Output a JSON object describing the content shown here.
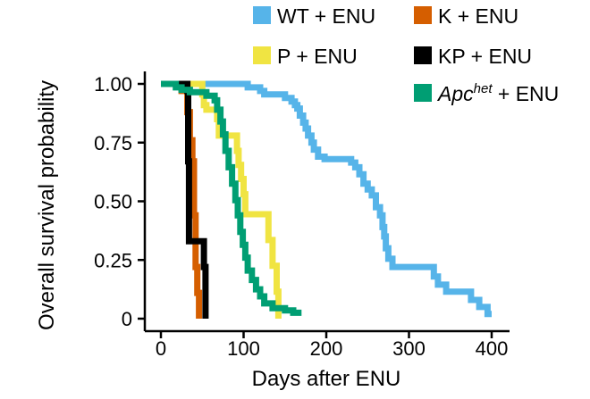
{
  "chart_data": {
    "type": "line",
    "step": true,
    "title": "",
    "xlabel": "Days after ENU",
    "ylabel": "Overall survival probability",
    "xlim": [
      0,
      400
    ],
    "ylim": [
      0,
      1
    ],
    "xticks": [
      0,
      100,
      200,
      300,
      400
    ],
    "yticks": [
      0,
      0.25,
      0.5,
      0.75,
      1.0
    ],
    "xtick_labels": [
      "0",
      "100",
      "200",
      "300",
      "400"
    ],
    "ytick_labels": [
      "0",
      "0.25",
      "0.50",
      "0.75",
      "1.00"
    ],
    "grid": false,
    "legend_position": "top-right",
    "series": [
      {
        "name": "WT + ENU",
        "color": "#56B4E9",
        "points": [
          [
            0,
            1.0
          ],
          [
            105,
            1.0
          ],
          [
            105,
            0.985
          ],
          [
            120,
            0.985
          ],
          [
            120,
            0.97
          ],
          [
            125,
            0.97
          ],
          [
            125,
            0.955
          ],
          [
            150,
            0.955
          ],
          [
            150,
            0.94
          ],
          [
            158,
            0.94
          ],
          [
            158,
            0.925
          ],
          [
            162,
            0.925
          ],
          [
            162,
            0.91
          ],
          [
            165,
            0.91
          ],
          [
            165,
            0.895
          ],
          [
            168,
            0.895
          ],
          [
            168,
            0.865
          ],
          [
            172,
            0.865
          ],
          [
            172,
            0.835
          ],
          [
            175,
            0.835
          ],
          [
            175,
            0.81
          ],
          [
            178,
            0.81
          ],
          [
            178,
            0.78
          ],
          [
            182,
            0.78
          ],
          [
            182,
            0.75
          ],
          [
            185,
            0.75
          ],
          [
            185,
            0.72
          ],
          [
            190,
            0.72
          ],
          [
            190,
            0.69
          ],
          [
            198,
            0.69
          ],
          [
            198,
            0.68
          ],
          [
            230,
            0.68
          ],
          [
            230,
            0.665
          ],
          [
            235,
            0.665
          ],
          [
            235,
            0.645
          ],
          [
            240,
            0.645
          ],
          [
            240,
            0.615
          ],
          [
            245,
            0.615
          ],
          [
            245,
            0.575
          ],
          [
            250,
            0.575
          ],
          [
            250,
            0.55
          ],
          [
            255,
            0.55
          ],
          [
            255,
            0.525
          ],
          [
            260,
            0.525
          ],
          [
            260,
            0.475
          ],
          [
            265,
            0.475
          ],
          [
            265,
            0.44
          ],
          [
            268,
            0.44
          ],
          [
            268,
            0.39
          ],
          [
            270,
            0.39
          ],
          [
            270,
            0.35
          ],
          [
            272,
            0.35
          ],
          [
            272,
            0.3
          ],
          [
            275,
            0.3
          ],
          [
            275,
            0.255
          ],
          [
            280,
            0.255
          ],
          [
            280,
            0.22
          ],
          [
            330,
            0.22
          ],
          [
            330,
            0.18
          ],
          [
            335,
            0.18
          ],
          [
            335,
            0.145
          ],
          [
            345,
            0.145
          ],
          [
            345,
            0.115
          ],
          [
            375,
            0.115
          ],
          [
            375,
            0.08
          ],
          [
            385,
            0.08
          ],
          [
            385,
            0.05
          ],
          [
            395,
            0.05
          ],
          [
            395,
            0.02
          ],
          [
            400,
            0.02
          ]
        ]
      },
      {
        "name": "P + ENU",
        "color": "#F0E442",
        "points": [
          [
            0,
            1.0
          ],
          [
            50,
            1.0
          ],
          [
            50,
            0.955
          ],
          [
            52,
            0.955
          ],
          [
            52,
            0.91
          ],
          [
            55,
            0.91
          ],
          [
            55,
            0.89
          ],
          [
            68,
            0.89
          ],
          [
            68,
            0.85
          ],
          [
            70,
            0.85
          ],
          [
            70,
            0.78
          ],
          [
            92,
            0.78
          ],
          [
            92,
            0.715
          ],
          [
            94,
            0.715
          ],
          [
            94,
            0.655
          ],
          [
            97,
            0.655
          ],
          [
            97,
            0.595
          ],
          [
            100,
            0.595
          ],
          [
            100,
            0.53
          ],
          [
            102,
            0.53
          ],
          [
            102,
            0.445
          ],
          [
            130,
            0.445
          ],
          [
            130,
            0.335
          ],
          [
            135,
            0.335
          ],
          [
            135,
            0.225
          ],
          [
            140,
            0.225
          ],
          [
            140,
            0.115
          ],
          [
            142,
            0.115
          ],
          [
            142,
            0.0
          ]
        ]
      },
      {
        "name": "K + ENU",
        "color": "#D55E00",
        "points": [
          [
            0,
            1.0
          ],
          [
            25,
            1.0
          ],
          [
            25,
            0.97
          ],
          [
            32,
            0.97
          ],
          [
            32,
            0.88
          ],
          [
            35,
            0.88
          ],
          [
            35,
            0.76
          ],
          [
            38,
            0.76
          ],
          [
            38,
            0.67
          ],
          [
            40,
            0.67
          ],
          [
            40,
            0.44
          ],
          [
            42,
            0.44
          ],
          [
            42,
            0.22
          ],
          [
            44,
            0.22
          ],
          [
            44,
            0.11
          ],
          [
            46,
            0.11
          ],
          [
            46,
            0.0
          ]
        ]
      },
      {
        "name": "KP + ENU",
        "color": "#000000",
        "points": [
          [
            0,
            1.0
          ],
          [
            32,
            1.0
          ],
          [
            32,
            0.97
          ],
          [
            33,
            0.97
          ],
          [
            33,
            0.67
          ],
          [
            34,
            0.67
          ],
          [
            34,
            0.33
          ],
          [
            52,
            0.33
          ],
          [
            52,
            0.22
          ],
          [
            54,
            0.22
          ],
          [
            54,
            0.0
          ]
        ]
      },
      {
        "name_html": {
          "pre": "Apc",
          "sup": "het",
          "post": " + ENU"
        },
        "color": "#009E73",
        "points": [
          [
            0,
            1.0
          ],
          [
            18,
            1.0
          ],
          [
            18,
            0.985
          ],
          [
            25,
            0.985
          ],
          [
            25,
            0.975
          ],
          [
            35,
            0.975
          ],
          [
            35,
            0.965
          ],
          [
            55,
            0.965
          ],
          [
            55,
            0.95
          ],
          [
            65,
            0.95
          ],
          [
            65,
            0.93
          ],
          [
            68,
            0.93
          ],
          [
            68,
            0.89
          ],
          [
            72,
            0.89
          ],
          [
            72,
            0.84
          ],
          [
            75,
            0.84
          ],
          [
            75,
            0.785
          ],
          [
            78,
            0.785
          ],
          [
            78,
            0.715
          ],
          [
            82,
            0.715
          ],
          [
            82,
            0.645
          ],
          [
            86,
            0.645
          ],
          [
            86,
            0.575
          ],
          [
            90,
            0.575
          ],
          [
            90,
            0.505
          ],
          [
            93,
            0.505
          ],
          [
            93,
            0.44
          ],
          [
            96,
            0.44
          ],
          [
            96,
            0.37
          ],
          [
            99,
            0.37
          ],
          [
            99,
            0.315
          ],
          [
            102,
            0.315
          ],
          [
            102,
            0.26
          ],
          [
            105,
            0.26
          ],
          [
            105,
            0.205
          ],
          [
            110,
            0.205
          ],
          [
            110,
            0.165
          ],
          [
            115,
            0.165
          ],
          [
            115,
            0.125
          ],
          [
            120,
            0.125
          ],
          [
            120,
            0.095
          ],
          [
            125,
            0.095
          ],
          [
            125,
            0.065
          ],
          [
            135,
            0.065
          ],
          [
            135,
            0.045
          ],
          [
            150,
            0.045
          ],
          [
            150,
            0.035
          ],
          [
            160,
            0.035
          ],
          [
            160,
            0.025
          ],
          [
            170,
            0.025
          ]
        ]
      }
    ],
    "legend": [
      {
        "label": "WT + ENU",
        "color": "#56B4E9"
      },
      {
        "label": "K + ENU",
        "color": "#D55E00"
      },
      {
        "label": "P + ENU",
        "color": "#F0E442"
      },
      {
        "label": "KP + ENU",
        "color": "#000000"
      },
      {
        "label_pre": "Apc",
        "label_sup": "het",
        "label_post": " + ENU",
        "color": "#009E73"
      }
    ]
  }
}
